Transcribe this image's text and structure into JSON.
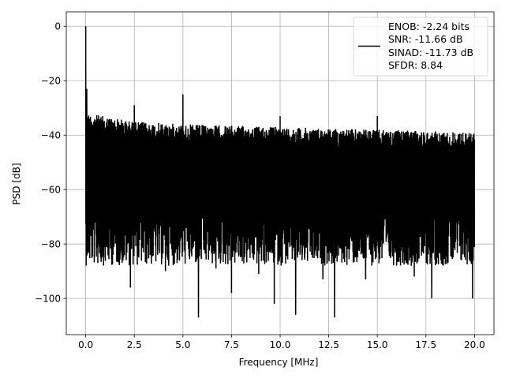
{
  "chart_data": {
    "type": "line",
    "title": "",
    "xlabel": "Frequency [MHz]",
    "ylabel": "PSD [dB]",
    "xlim": [
      -1.0,
      21.0
    ],
    "ylim": [
      -113.3,
      5.3
    ],
    "x_ticks": [
      0.0,
      2.5,
      5.0,
      7.5,
      10.0,
      12.5,
      15.0,
      17.5,
      20.0
    ],
    "x_tick_labels": [
      "0.0",
      "2.5",
      "5.0",
      "7.5",
      "10.0",
      "12.5",
      "15.0",
      "17.5",
      "20.0"
    ],
    "y_ticks": [
      0,
      -20,
      -40,
      -60,
      -80,
      -100
    ],
    "y_tick_labels": [
      "0",
      "−20",
      "−40",
      "−60",
      "−80",
      "−100"
    ],
    "grid": true,
    "legend_position": "upper-right",
    "series_color": "#000000",
    "series": [
      {
        "name": "",
        "legend_lines": [
          "ENOB: -2.24 bits",
          "SNR: -11.66 dB",
          "SINAD: -11.73 dB",
          "SFDR: 8.84"
        ],
        "x_range": [
          0.0,
          20.0
        ],
        "noise_ceiling": [
          {
            "x": 0.15,
            "y": -32
          },
          {
            "x": 2.5,
            "y": -35
          },
          {
            "x": 5.0,
            "y": -36
          },
          {
            "x": 10.0,
            "y": -37
          },
          {
            "x": 15.0,
            "y": -38
          },
          {
            "x": 20.0,
            "y": -39
          }
        ],
        "noise_floor_typical": -80,
        "peaks": [
          {
            "x": 0.0,
            "y": 0.0
          },
          {
            "x": 0.05,
            "y": -23
          },
          {
            "x": 2.5,
            "y": -29
          },
          {
            "x": 5.0,
            "y": -25
          },
          {
            "x": 10.0,
            "y": -33
          },
          {
            "x": 15.0,
            "y": -33
          }
        ],
        "dips": [
          {
            "x": 0.15,
            "y": -83
          },
          {
            "x": 0.8,
            "y": -83
          },
          {
            "x": 2.3,
            "y": -96
          },
          {
            "x": 4.1,
            "y": -90
          },
          {
            "x": 5.8,
            "y": -107
          },
          {
            "x": 6.7,
            "y": -89
          },
          {
            "x": 7.5,
            "y": -98
          },
          {
            "x": 8.9,
            "y": -91
          },
          {
            "x": 9.7,
            "y": -102
          },
          {
            "x": 10.8,
            "y": -106
          },
          {
            "x": 12.2,
            "y": -93
          },
          {
            "x": 12.8,
            "y": -107
          },
          {
            "x": 14.4,
            "y": -93
          },
          {
            "x": 16.9,
            "y": -92
          },
          {
            "x": 17.8,
            "y": -100
          },
          {
            "x": 19.9,
            "y": -100
          }
        ]
      }
    ]
  }
}
